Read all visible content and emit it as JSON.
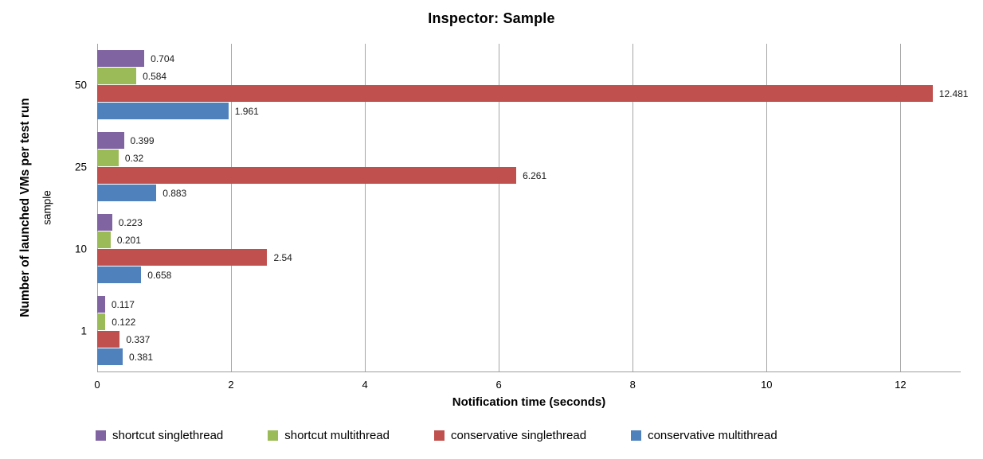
{
  "chart_data": {
    "type": "bar",
    "orientation": "horizontal",
    "title": "Inspector: Sample",
    "xlabel": "Notification time (seconds)",
    "ylabel": "Number of launched VMs per test run",
    "ylabel_inner": "sample",
    "categories": [
      "50",
      "25",
      "10",
      "1"
    ],
    "series": [
      {
        "name": "shortcut singlethread",
        "color": "#8064A2",
        "values": [
          0.704,
          0.399,
          0.223,
          0.117
        ]
      },
      {
        "name": "shortcut multithread",
        "color": "#9BBB59",
        "values": [
          0.584,
          0.32,
          0.201,
          0.122
        ]
      },
      {
        "name": "conservative singlethread",
        "color": "#C0504D",
        "values": [
          12.481,
          6.261,
          2.54,
          0.337
        ]
      },
      {
        "name": "conservative multithread",
        "color": "#4F81BD",
        "values": [
          1.961,
          0.883,
          0.658,
          0.381
        ]
      }
    ],
    "xlim": [
      0,
      12.9
    ],
    "xticks": [
      0,
      2,
      4,
      6,
      8,
      10,
      12
    ],
    "grid": true,
    "value_labels_shown": true,
    "legend_position": "bottom",
    "grid_color": "#A6A6A6",
    "axis_line_color": "#9E9E9E"
  }
}
